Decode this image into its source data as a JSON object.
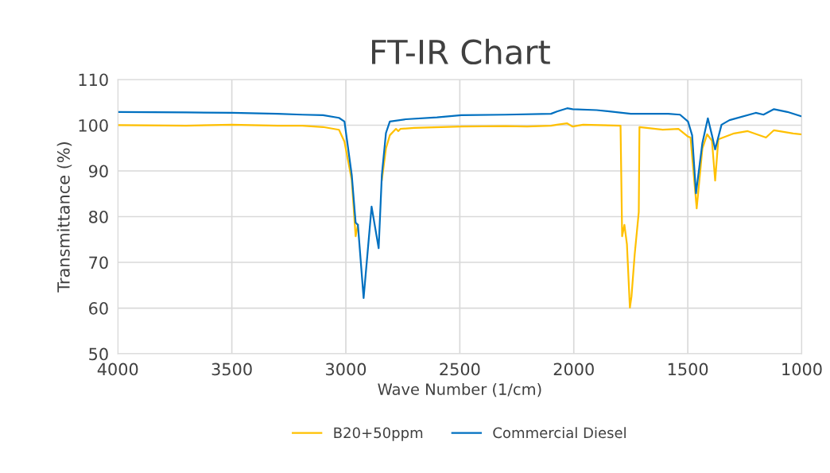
{
  "chart_data": {
    "type": "line",
    "title": "FT-IR Chart",
    "xlabel": "Wave Number (1/cm)",
    "ylabel": "Transmittance (%)",
    "xlim": [
      4000,
      1000
    ],
    "xticks": [
      4000,
      3500,
      3000,
      2500,
      2000,
      1500,
      1000
    ],
    "ylim": [
      50,
      110
    ],
    "yticks": [
      50,
      60,
      70,
      80,
      90,
      100,
      110
    ],
    "grid": true,
    "legend": "bottom",
    "marker": "none",
    "line_style": "solid",
    "series": [
      {
        "name": "B20+50ppm",
        "color": "#ffc000",
        "x": [
          4000,
          3700,
          3500,
          3300,
          3191,
          3100,
          3030,
          3006,
          2974,
          2957,
          2947,
          2922,
          2887,
          2856,
          2842,
          2824,
          2807,
          2780,
          2770,
          2760,
          2700,
          2493,
          2300,
          2205,
          2100,
          2074,
          2029,
          2005,
          1959,
          1795,
          1788,
          1778,
          1767,
          1754,
          1747,
          1733,
          1715,
          1712,
          1610,
          1541,
          1499,
          1488,
          1461,
          1436,
          1415,
          1394,
          1380,
          1366,
          1297,
          1237,
          1157,
          1122,
          1038,
          1000
        ],
        "values": [
          100.0,
          99.9,
          100.1,
          99.9,
          99.9,
          99.6,
          99.0,
          96.4,
          88.0,
          75.7,
          78.2,
          null,
          null,
          null,
          88.0,
          94.9,
          97.8,
          99.2,
          98.7,
          99.2,
          99.4,
          99.7,
          99.8,
          99.7,
          99.9,
          100.1,
          100.4,
          99.7,
          100.1,
          99.9,
          75.7,
          78.2,
          74.0,
          60.1,
          62.5,
          71.7,
          81.0,
          99.6,
          99.0,
          99.2,
          97.5,
          97.3,
          81.8,
          94.9,
          98.0,
          96.6,
          87.9,
          96.9,
          98.2,
          98.7,
          97.3,
          98.9,
          98.2,
          98.0
        ]
      },
      {
        "name": "Commercial Diesel",
        "color": "#0070c0",
        "x": [
          4000,
          3700,
          3500,
          3300,
          3191,
          3100,
          3030,
          3006,
          2974,
          2957,
          2947,
          2922,
          2887,
          2856,
          2842,
          2824,
          2807,
          2737,
          2600,
          2493,
          2300,
          2100,
          2074,
          2029,
          2005,
          1900,
          1750,
          1586,
          1534,
          1499,
          1481,
          1464,
          1436,
          1412,
          1394,
          1380,
          1352,
          1317,
          1202,
          1168,
          1122,
          1063,
          1000
        ],
        "values": [
          102.9,
          102.8,
          102.7,
          102.5,
          102.3,
          102.2,
          101.6,
          100.8,
          89.1,
          78.7,
          78.2,
          62.2,
          82.2,
          73.1,
          89.1,
          98.3,
          100.8,
          101.3,
          101.7,
          102.2,
          102.3,
          102.5,
          103.0,
          103.7,
          103.5,
          103.3,
          102.5,
          102.5,
          102.3,
          100.8,
          97.8,
          85.1,
          96.1,
          101.5,
          97.8,
          94.7,
          100.1,
          101.1,
          102.7,
          102.3,
          103.5,
          102.9,
          101.9
        ]
      }
    ]
  }
}
